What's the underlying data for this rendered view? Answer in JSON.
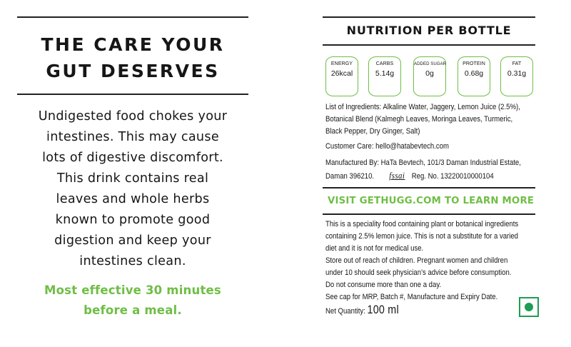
{
  "left_panel": {
    "headline": [
      "THE CARE YOUR",
      "GUT DESERVES"
    ],
    "body_lines": [
      "Undigested food chokes your",
      "intestines. This may cause",
      "lots of digestive discomfort.",
      "This drink contains real",
      "leaves and whole herbs",
      "known to promote good",
      "digestion and keep your",
      "intestines clean."
    ],
    "tip_lines": [
      "Most effective 30 minutes",
      "before a meal."
    ]
  },
  "right_panel": {
    "title": "NUTRITION PER BOTTLE",
    "facts": [
      {
        "label": "ENERGY",
        "value": "26kcal"
      },
      {
        "label": "CARBS",
        "value": "5.14g"
      },
      {
        "label": "ADDED SUGAR",
        "value": "0g"
      },
      {
        "label": "PROTEIN",
        "value": "0.68g"
      },
      {
        "label": "FAT",
        "value": "0.31g"
      }
    ],
    "ingredients_lines": [
      "List of Ingredients: Alkaline Water, Jaggery, Lemon Juice (2.5%),",
      "Botanical Blend (Kalmegh Leaves, Moringa Leaves, Turmeric,",
      "Black Pepper, Dry Ginger, Salt)"
    ],
    "customer_care": "Customer Care: hello@hatabevtech.com",
    "manufacturer_line1": "Manufactured By: HaTa Bevtech, 101/3 Daman Industrial Estate,",
    "manufacturer_line2": "Daman 396210.",
    "fssai_logo_text": "fssai",
    "reg_no": "Reg. No. 13220010000104",
    "visit": "VISIT GETHUGG.COM TO LEARN MORE",
    "disclaimer_lines": [
      "This is a speciality food containing plant or botanical ingredients",
      "containing 2.5% lemon juice. This is not a substitute for a varied",
      "diet and it is not for medical use.",
      "Store out of reach of children. Pregnant women and children",
      "under 10 should seek physician’s advice before consumption.",
      "Do not consume more than one a day.",
      "See cap for MRP, Batch #, Manufacture and Expiry Date."
    ],
    "net_quantity_label": "Net Quantity:",
    "net_quantity_value": "100 ml",
    "veg_mark_icon": "veg-symbol-icon"
  },
  "colors": {
    "accent_green": "#6fbe45",
    "veg_green": "#1f9d55",
    "text": "#161616"
  }
}
